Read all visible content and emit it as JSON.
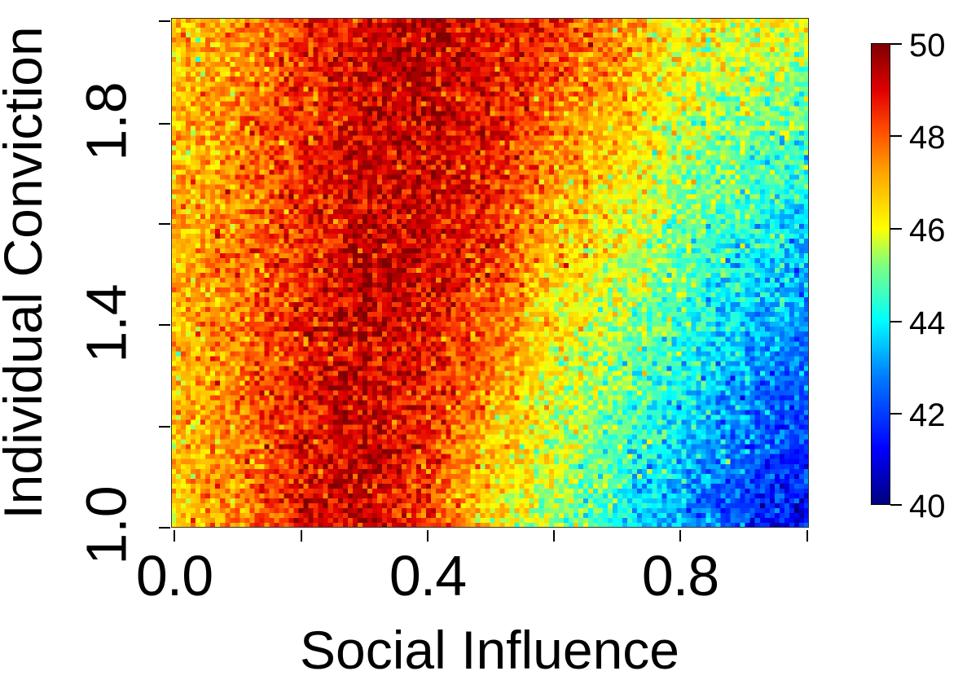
{
  "chart_data": {
    "type": "heatmap",
    "title": "",
    "xlabel": "Social Influence",
    "ylabel": "Individual Conviction",
    "xlim": [
      0.0,
      1.0
    ],
    "ylim": [
      1.0,
      2.0
    ],
    "x_ticks": [
      0.0,
      0.2,
      0.4,
      0.6,
      0.8,
      1.0
    ],
    "x_tick_labels": [
      "0.0",
      "",
      "0.4",
      "",
      "0.8",
      ""
    ],
    "y_ticks": [
      1.0,
      1.2,
      1.4,
      1.6,
      1.8,
      2.0
    ],
    "y_tick_labels": [
      "1.0",
      "",
      "1.4",
      "",
      "1.8",
      ""
    ],
    "grid": false,
    "grid_size": {
      "cols": 130,
      "rows": 104
    },
    "colorbar": {
      "range": [
        40,
        50
      ],
      "ticks": [
        40,
        42,
        44,
        46,
        48,
        50
      ],
      "tick_labels": [
        "40",
        "42",
        "44",
        "46",
        "48",
        "50"
      ],
      "colormap": "jet",
      "stops": [
        {
          "v": 40.0,
          "color": "#00007F"
        },
        {
          "v": 41.2,
          "color": "#0000FF"
        },
        {
          "v": 42.8,
          "color": "#007FFF"
        },
        {
          "v": 44.0,
          "color": "#00FFFF"
        },
        {
          "v": 45.2,
          "color": "#7FFF7F"
        },
        {
          "v": 46.0,
          "color": "#FFFF00"
        },
        {
          "v": 47.2,
          "color": "#FFA500"
        },
        {
          "v": 48.2,
          "color": "#FF4500"
        },
        {
          "v": 49.0,
          "color": "#E00000"
        },
        {
          "v": 50.0,
          "color": "#7F0000"
        }
      ]
    },
    "approx_profile": {
      "description": "Value vs Social Influence: ~46.5 at 0.0, peaks ~49.5 near 0.3 (at conviction 1.0) shifting to ~0.4 at conviction 2.0; high-value band widens with conviction; drops to ~41 at x=1.0, conviction 1.0; ~46 at x=1.0, conviction 2.0",
      "samples": [
        {
          "y": 1.0,
          "x": [
            0.0,
            0.1,
            0.2,
            0.3,
            0.4,
            0.5,
            0.6,
            0.7,
            0.8,
            0.9,
            1.0
          ],
          "v": [
            46.5,
            47.5,
            48.8,
            49.2,
            48.3,
            46.2,
            45.3,
            44.2,
            43.0,
            41.8,
            41.0
          ]
        },
        {
          "y": 1.5,
          "x": [
            0.0,
            0.1,
            0.2,
            0.3,
            0.4,
            0.5,
            0.6,
            0.7,
            0.8,
            0.9,
            1.0
          ],
          "v": [
            46.8,
            47.6,
            48.5,
            49.3,
            49.0,
            48.4,
            46.5,
            45.8,
            44.8,
            44.0,
            43.2
          ]
        },
        {
          "y": 2.0,
          "x": [
            0.0,
            0.1,
            0.2,
            0.3,
            0.4,
            0.5,
            0.6,
            0.7,
            0.8,
            0.9,
            1.0
          ],
          "v": [
            46.6,
            47.3,
            48.3,
            49.0,
            49.4,
            49.0,
            48.5,
            47.5,
            46.3,
            46.0,
            45.8
          ]
        }
      ]
    }
  }
}
